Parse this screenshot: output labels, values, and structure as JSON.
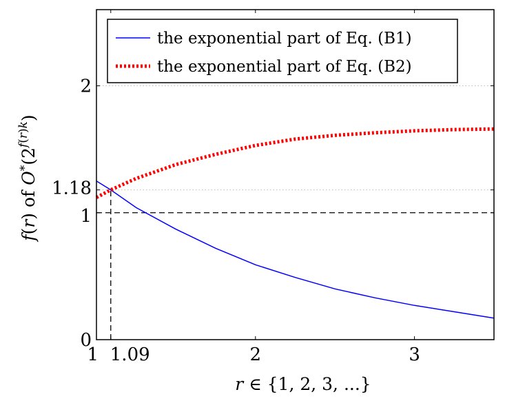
{
  "chart_data": {
    "type": "line",
    "xlabel": "r ∈ {1, 2, 3, ...}",
    "ylabel": "f(r) of O*(2^{f(r)k})",
    "xlim": [
      1,
      3.5
    ],
    "ylim": [
      0,
      2.6
    ],
    "x_ticks": [
      {
        "value": 1,
        "label": "1"
      },
      {
        "value": 1.09,
        "label": "1.09"
      },
      {
        "value": 2,
        "label": "2"
      },
      {
        "value": 3,
        "label": "3"
      }
    ],
    "y_ticks": [
      {
        "value": 0,
        "label": "0"
      },
      {
        "value": 1,
        "label": "1"
      },
      {
        "value": 1.18,
        "label": "1.18"
      },
      {
        "value": 2,
        "label": "2"
      }
    ],
    "grid": "dotted horizontal at y = 1.18 and y = 2",
    "legend_position": "top-left",
    "series": [
      {
        "name": "the exponential part of Eq. (B1)",
        "color": "#0000ff",
        "style": "solid",
        "x": [
          1.0,
          1.09,
          1.25,
          1.5,
          1.75,
          2.0,
          2.25,
          2.5,
          2.75,
          3.0,
          3.25,
          3.5
        ],
        "y": [
          1.25,
          1.18,
          1.04,
          0.87,
          0.72,
          0.59,
          0.49,
          0.4,
          0.33,
          0.27,
          0.22,
          0.17
        ]
      },
      {
        "name": "the exponential part of Eq. (B2)",
        "color": "#ff0000",
        "style": "dotted-thick",
        "x": [
          1.0,
          1.09,
          1.25,
          1.5,
          1.75,
          2.0,
          2.25,
          2.5,
          2.75,
          3.0,
          3.25,
          3.5
        ],
        "y": [
          1.12,
          1.18,
          1.27,
          1.38,
          1.46,
          1.53,
          1.58,
          1.61,
          1.63,
          1.645,
          1.655,
          1.66
        ]
      }
    ],
    "reference_lines": [
      {
        "axis": "y",
        "value": 1,
        "style": "dashed"
      },
      {
        "axis": "x",
        "value": 1.09,
        "from_y": 0,
        "to_y": 1.18,
        "style": "dashed"
      }
    ]
  }
}
